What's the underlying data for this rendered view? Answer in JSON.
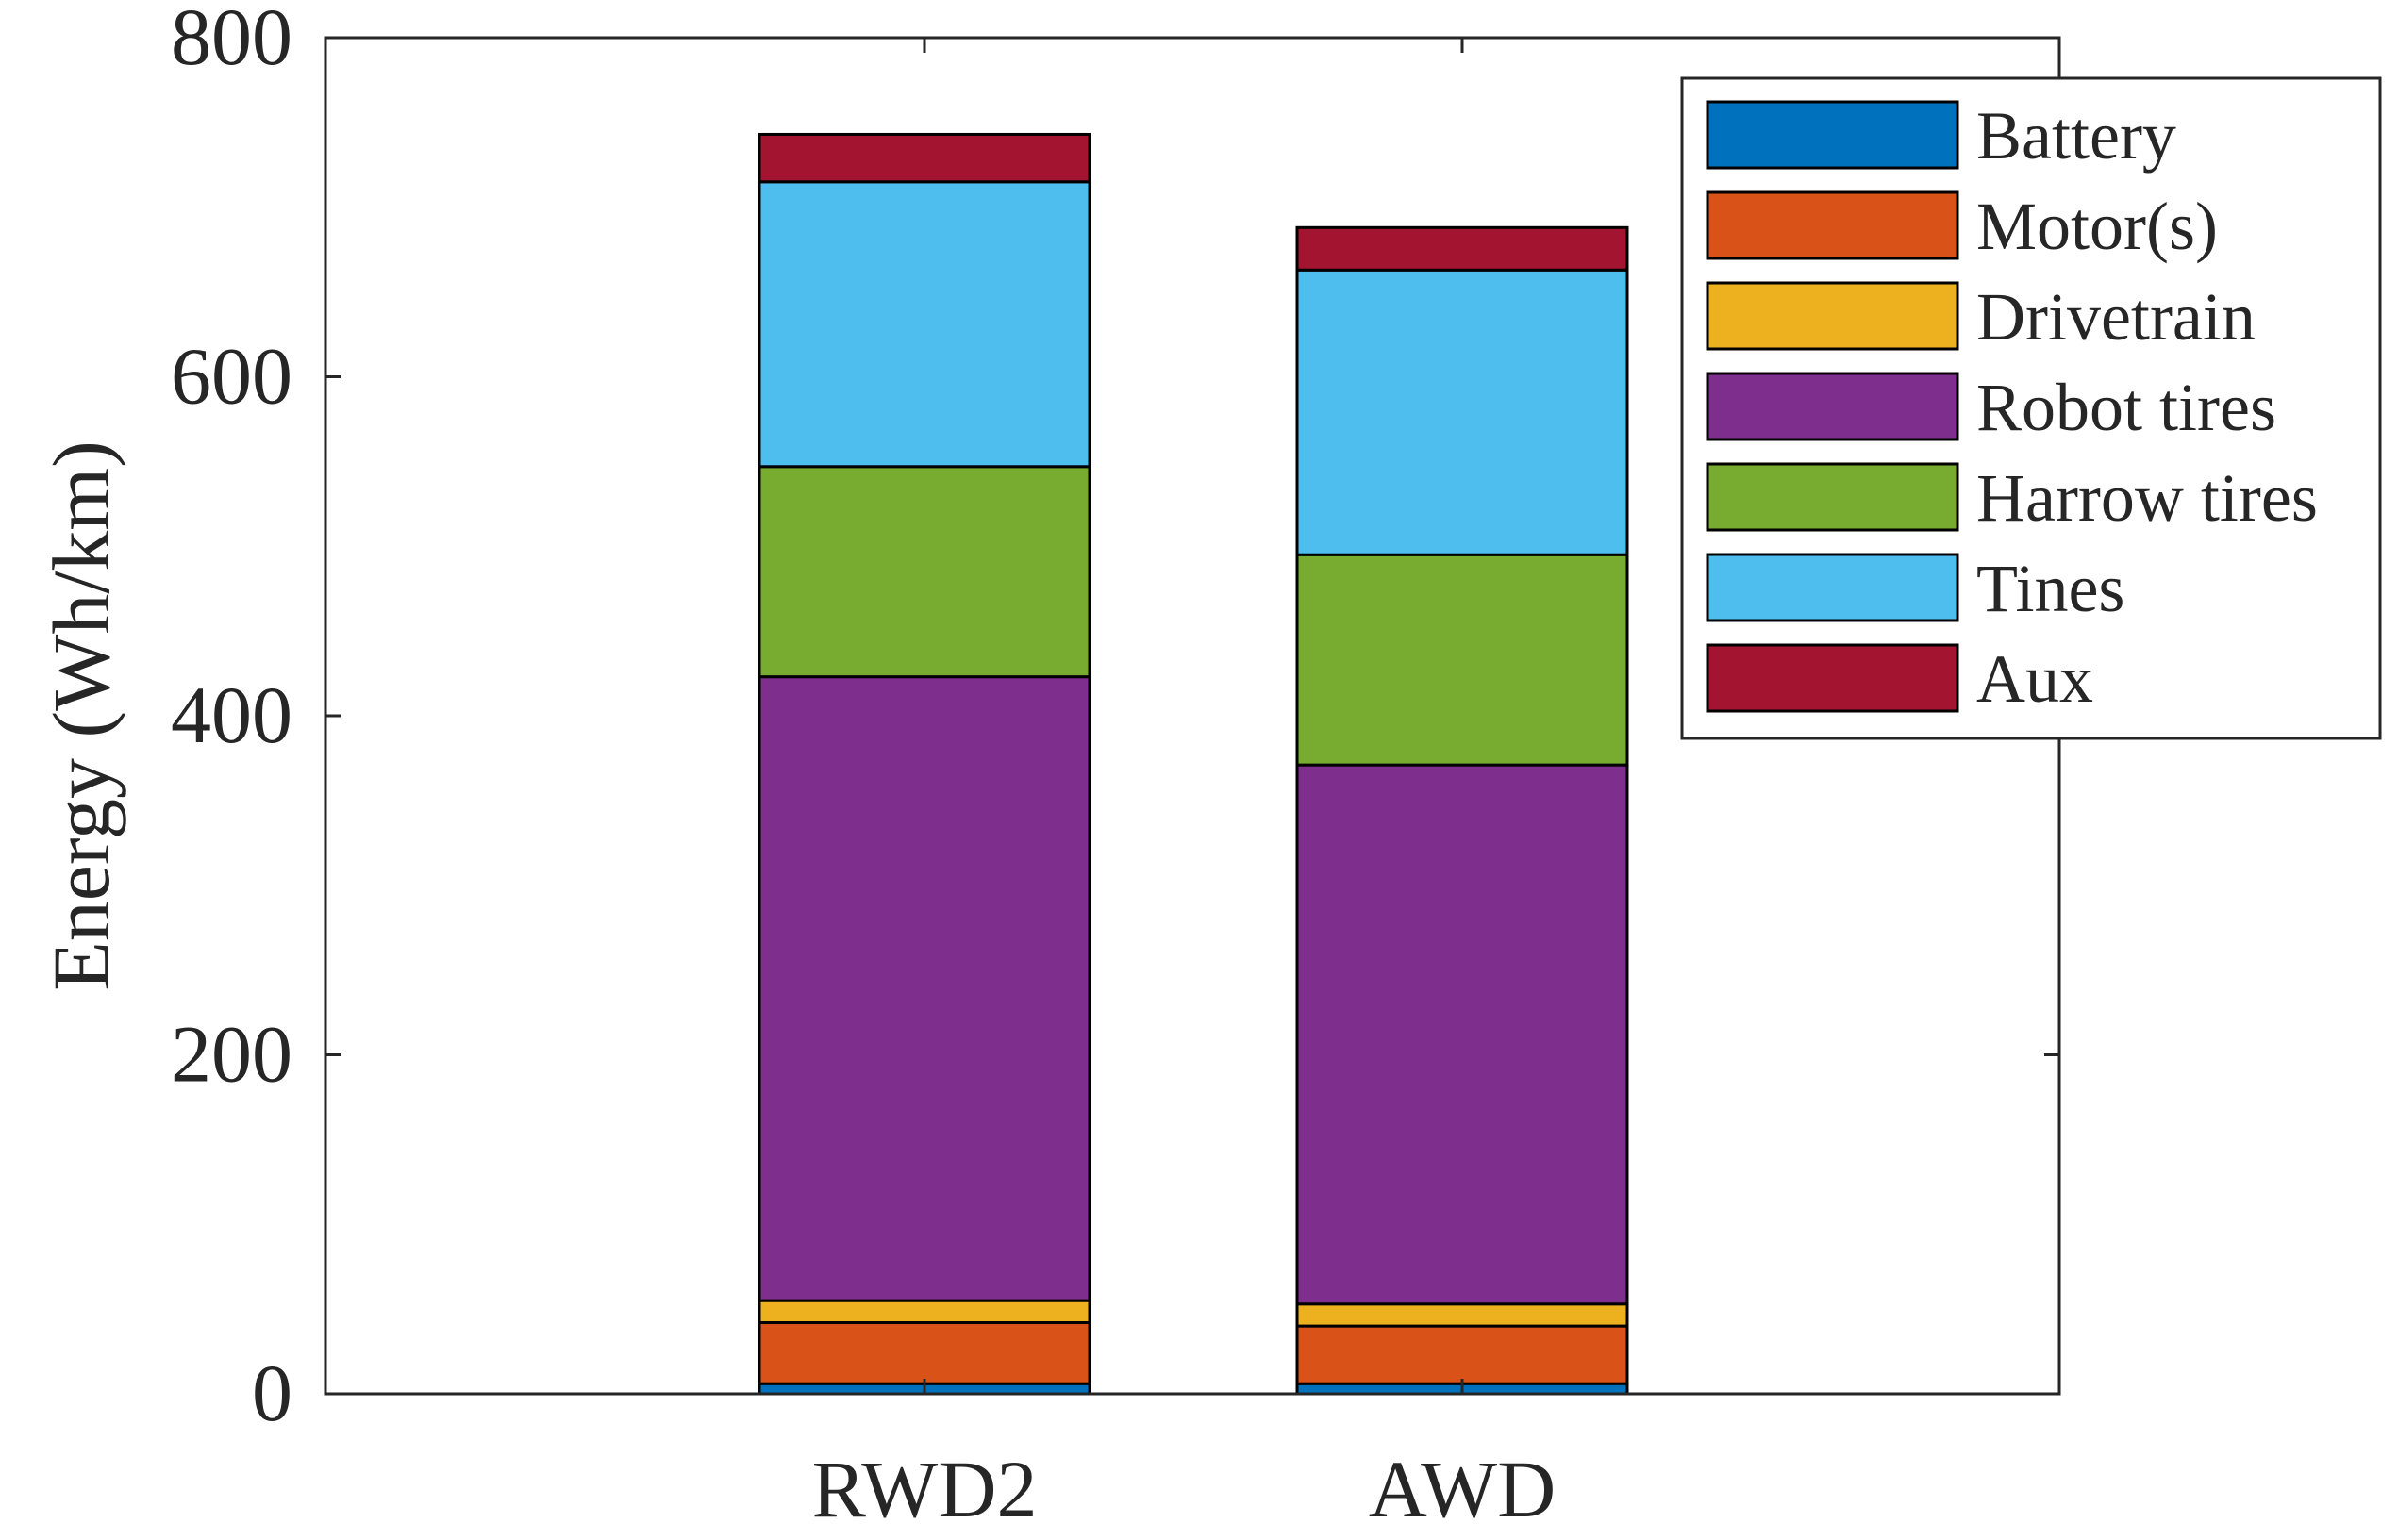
{
  "chart_data": {
    "type": "bar",
    "stacked": true,
    "categories": [
      "RWD2",
      "AWD"
    ],
    "series": [
      {
        "name": "Battery",
        "values": [
          6,
          6
        ],
        "color": "#0072BD"
      },
      {
        "name": "Motor(s)",
        "values": [
          36,
          34
        ],
        "color": "#D95319"
      },
      {
        "name": "Drivetrain",
        "values": [
          13,
          13
        ],
        "color": "#EDB120"
      },
      {
        "name": "Robot tires",
        "values": [
          368,
          318
        ],
        "color": "#7E2F8E"
      },
      {
        "name": "Harrow tires",
        "values": [
          124,
          124
        ],
        "color": "#77AC30"
      },
      {
        "name": "Tines",
        "values": [
          168,
          168
        ],
        "color": "#4DBEEE"
      },
      {
        "name": "Aux",
        "values": [
          28,
          25
        ],
        "color": "#A2142F"
      }
    ],
    "xlabel": "",
    "ylabel": "Energy (Wh/km)",
    "ylim": [
      0,
      800
    ],
    "yticks": [
      "0",
      "200",
      "400",
      "600",
      "800"
    ],
    "grid": false,
    "legend_position": "top-right"
  }
}
